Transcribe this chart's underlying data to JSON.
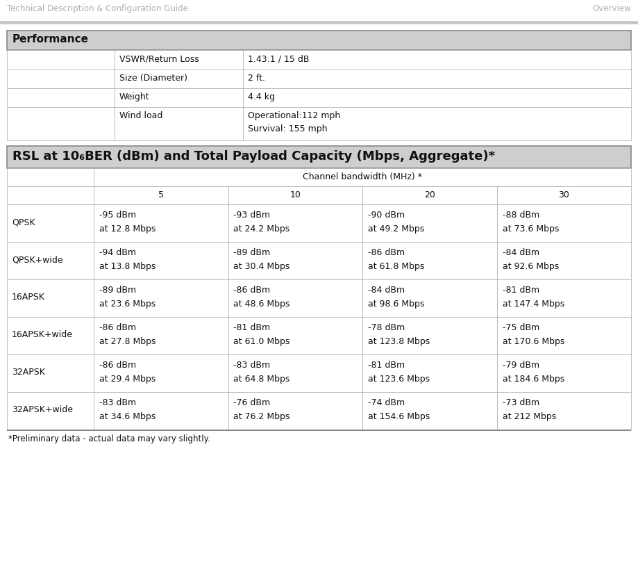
{
  "header_text": "Technical Description & Configuration Guide",
  "header_right": "Overview",
  "header_text_color": "#b0b0b0",
  "page_bg": "#ffffff",
  "section1_title": "Performance",
  "section1_bg": "#cecece",
  "section1_rows": [
    [
      "VSWR/Return Loss",
      "1.43:1 / 15 dB"
    ],
    [
      "Size (Diameter)",
      "2 ft."
    ],
    [
      "Weight",
      "4.4 kg"
    ],
    [
      "Wind load",
      "Operational:112 mph\nSurvival: 155 mph"
    ]
  ],
  "section2_title": "RSL at 10₆BER (dBm) and Total Payload Capacity (Mbps, Aggregate)*",
  "section2_bg": "#cecece",
  "channel_bw_header": "Channel bandwidth (MHz) *",
  "channel_bw_cols": [
    "5",
    "10",
    "20",
    "30"
  ],
  "table_rows": [
    {
      "modulation": "QPSK",
      "values": [
        "-95 dBm\nat 12.8 Mbps",
        "-93 dBm\nat 24.2 Mbps",
        "-90 dBm\nat 49.2 Mbps",
        "-88 dBm\nat 73.6 Mbps"
      ]
    },
    {
      "modulation": "QPSK+wide",
      "values": [
        "-94 dBm\nat 13.8 Mbps",
        "-89 dBm\nat 30.4 Mbps",
        "-86 dBm\nat 61.8 Mbps",
        "-84 dBm\nat 92.6 Mbps"
      ]
    },
    {
      "modulation": "16APSK",
      "values": [
        "-89 dBm\nat 23.6 Mbps",
        "-86 dBm\nat 48.6 Mbps",
        "-84 dBm\nat 98.6 Mbps",
        "-81 dBm\nat 147.4 Mbps"
      ]
    },
    {
      "modulation": "16APSK+wide",
      "values": [
        "-86 dBm\nat 27.8 Mbps",
        "-81 dBm\nat 61.0 Mbps",
        "-78 dBm\nat 123.8 Mbps",
        "-75 dBm\nat 170.6 Mbps"
      ]
    },
    {
      "modulation": "32APSK",
      "values": [
        "-86 dBm\nat 29.4 Mbps",
        "-83 dBm\nat 64.8 Mbps",
        "-81 dBm\nat 123.6 Mbps",
        "-79 dBm\nat 184.6 Mbps"
      ]
    },
    {
      "modulation": "32APSK+wide",
      "values": [
        "-83 dBm\nat 34.6 Mbps",
        "-76 dBm\nat 76.2 Mbps",
        "-74 dBm\nat 154.6 Mbps",
        "-73 dBm\nat 212 Mbps"
      ]
    }
  ],
  "footnote": "*Preliminary data - actual data may vary slightly.",
  "line_color": "#aaaaaa",
  "thick_line_color": "#888888",
  "cell_text_color": "#111111",
  "row_bg": "#ffffff",
  "font_size_header": 8.5,
  "font_size_section1": 11,
  "font_size_section2": 13,
  "font_size_cell": 9,
  "font_size_footnote": 8.5
}
